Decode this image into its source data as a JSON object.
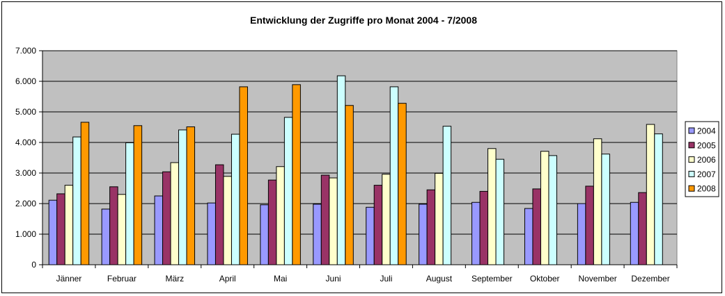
{
  "chart_data": {
    "type": "bar",
    "title": "Entwicklung der Zugriffe pro Monat 2004 - 7/2008",
    "xlabel": "",
    "ylabel": "",
    "categories": [
      "Jänner",
      "Februar",
      "März",
      "April",
      "Mai",
      "Juni",
      "Juli",
      "August",
      "September",
      "Oktober",
      "November",
      "Dezember"
    ],
    "ylim": [
      0,
      7000
    ],
    "yticks": [
      0,
      1000,
      2000,
      3000,
      4000,
      5000,
      6000,
      7000
    ],
    "ytick_labels": [
      "0",
      "1.000",
      "2.000",
      "3.000",
      "4.000",
      "5.000",
      "6.000",
      "7.000"
    ],
    "grid": true,
    "plot_background": "#c0c0c0",
    "legend": "right",
    "series": [
      {
        "name": "2004",
        "color": "#9999ff",
        "values": [
          2110,
          1820,
          2250,
          2020,
          1960,
          1980,
          1880,
          1980,
          2040,
          1840,
          2000,
          2040
        ]
      },
      {
        "name": "2005",
        "color": "#993366",
        "values": [
          2320,
          2550,
          3040,
          3270,
          2770,
          2930,
          2600,
          2450,
          2400,
          2480,
          2570,
          2360
        ]
      },
      {
        "name": "2006",
        "color": "#ffffcc",
        "values": [
          2600,
          2300,
          3340,
          2890,
          3210,
          2840,
          2960,
          2990,
          3800,
          3710,
          4120,
          4590
        ]
      },
      {
        "name": "2007",
        "color": "#ccffff",
        "values": [
          4180,
          3990,
          4410,
          4270,
          4820,
          6180,
          5820,
          4530,
          3450,
          3570,
          3620,
          4280
        ]
      },
      {
        "name": "2008",
        "color": "#ff9900",
        "values": [
          4660,
          4550,
          4510,
          5820,
          5890,
          5210,
          5280,
          null,
          null,
          null,
          null,
          null
        ]
      }
    ]
  }
}
